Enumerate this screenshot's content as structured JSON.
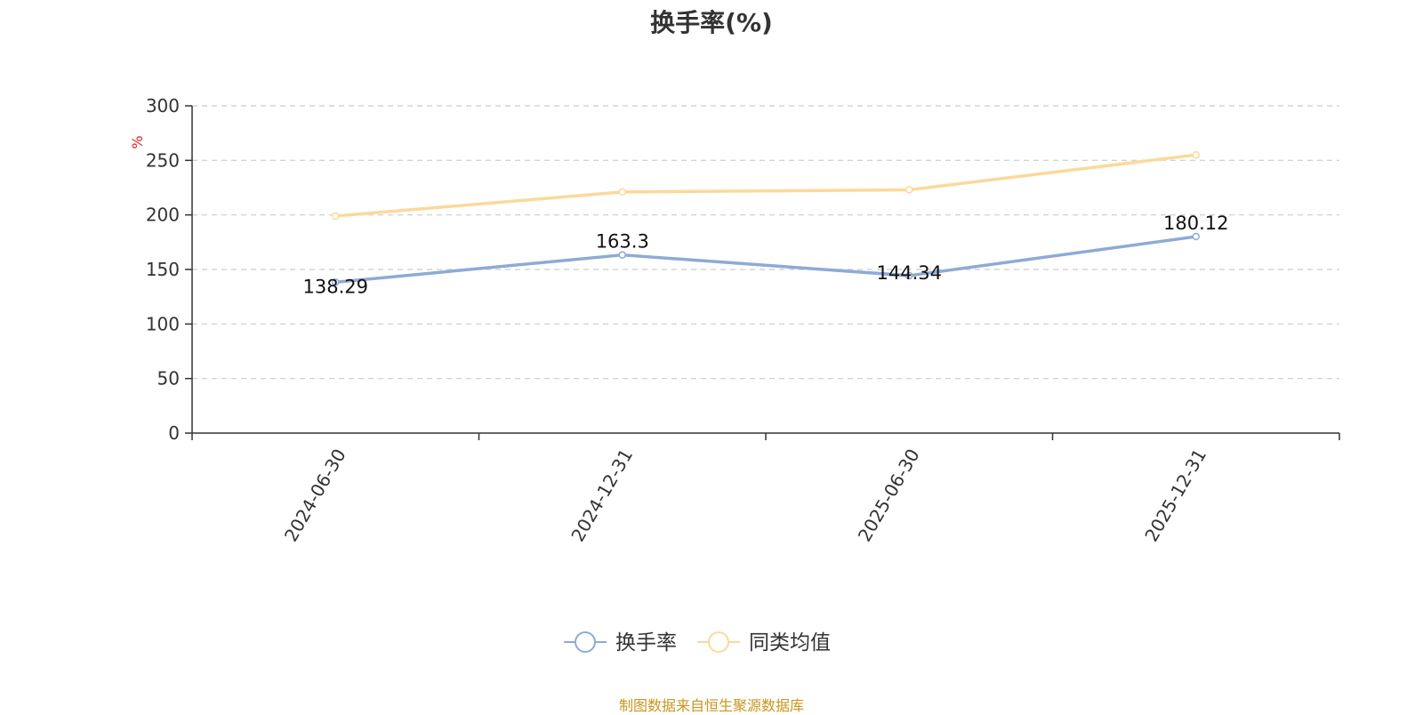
{
  "chart_data": {
    "type": "line",
    "title": "换手率(%)",
    "ylabel": "%",
    "categories": [
      "2024-06-30",
      "2024-12-31",
      "2025-06-30",
      "2025-12-31"
    ],
    "ylim": [
      0,
      300
    ],
    "yticks": [
      0,
      50,
      100,
      150,
      200,
      250,
      300
    ],
    "grid": true,
    "legend_position": "bottom-center",
    "series": [
      {
        "name": "换手率",
        "values": [
          138.29,
          163.3,
          144.34,
          180.12
        ],
        "color": "#8eaad6",
        "show_labels": true
      },
      {
        "name": "同类均值",
        "values": [
          199,
          221,
          223,
          255
        ],
        "color": "#fcd99a",
        "show_labels": false
      }
    ]
  },
  "colors": {
    "axis": "#333333",
    "grid": "#cccccc",
    "unit": "#e02020"
  },
  "source": "制图数据来自恒生聚源数据库"
}
